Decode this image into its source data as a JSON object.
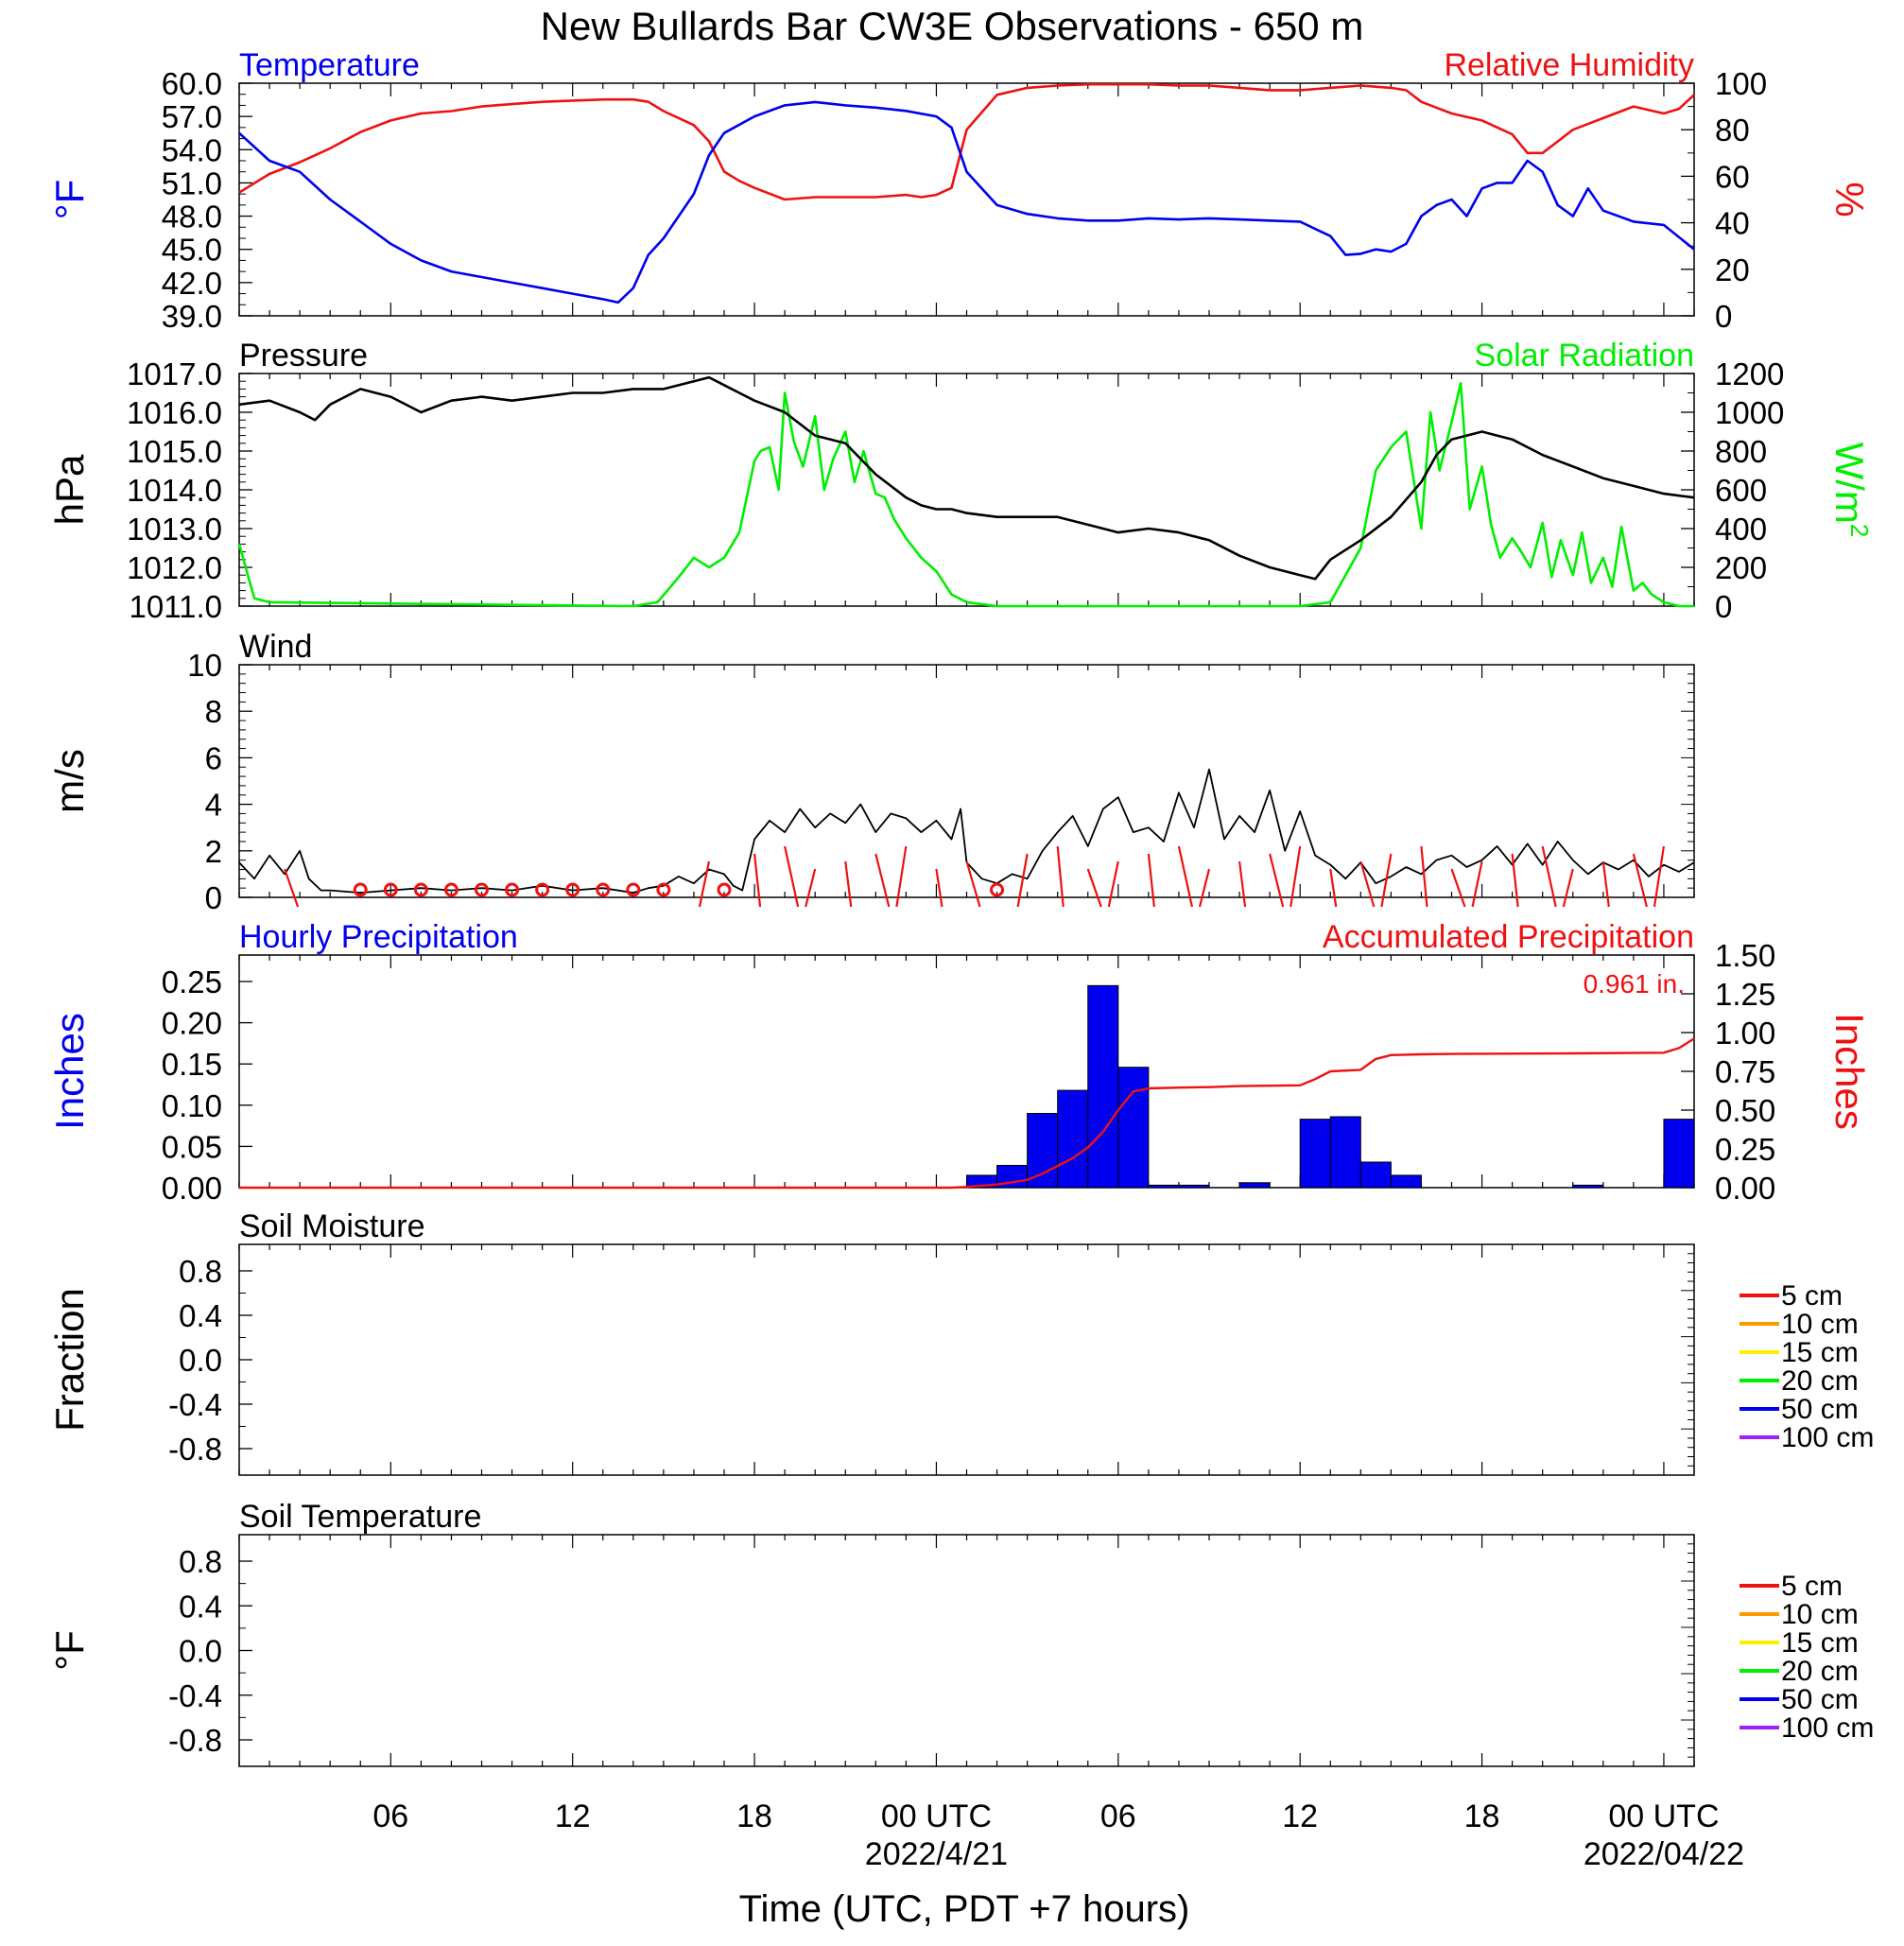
{
  "title": "New Bullards Bar CW3E Observations - 650 m",
  "xlabel": "Time (UTC, PDT +7 hours)",
  "colors": {
    "blue": "#0000ee",
    "red": "#ee1111",
    "green": "#00ee00",
    "black": "#000000",
    "orange": "#ff9900",
    "yellow": "#ffee00",
    "purple": "#a020f0"
  },
  "x_axis": {
    "range_hours": [
      0,
      48
    ],
    "ticks": [
      {
        "h": 5,
        "label": "06",
        "sub": ""
      },
      {
        "h": 11,
        "label": "12",
        "sub": ""
      },
      {
        "h": 17,
        "label": "18",
        "sub": ""
      },
      {
        "h": 23,
        "label": "00 UTC",
        "sub": "2022/4/21"
      },
      {
        "h": 29,
        "label": "06",
        "sub": ""
      },
      {
        "h": 35,
        "label": "12",
        "sub": ""
      },
      {
        "h": 41,
        "label": "18",
        "sub": ""
      },
      {
        "h": 47,
        "label": "00 UTC",
        "sub": "2022/04/22"
      }
    ]
  },
  "panels": {
    "temp_rh": {
      "left_title": "Temperature",
      "right_title": "Relative Humidity",
      "left_unit": "°F",
      "right_unit": "%",
      "left_ticks": [
        "60.0",
        "57.0",
        "54.0",
        "51.0",
        "48.0",
        "45.0",
        "42.0",
        "39.0"
      ],
      "right_ticks": [
        "100",
        "80",
        "60",
        "40",
        "20",
        "0"
      ]
    },
    "pressure_solar": {
      "left_title": "Pressure",
      "right_title": "Solar Radiation",
      "left_unit": "hPa",
      "right_unit_base": "W/m",
      "right_unit_sup": "2",
      "left_ticks": [
        "1017.0",
        "1016.0",
        "1015.0",
        "1014.0",
        "1013.0",
        "1012.0",
        "1011.0"
      ],
      "right_ticks": [
        "1200",
        "1000",
        "800",
        "600",
        "400",
        "200",
        "0"
      ]
    },
    "wind": {
      "left_title": "Wind",
      "left_unit": "m/s",
      "left_ticks": [
        "10",
        "8",
        "6",
        "4",
        "2",
        "0"
      ]
    },
    "precip": {
      "left_title": "Hourly Precipitation",
      "right_title": "Accumulated Precipitation",
      "left_unit": "Inches",
      "right_unit": "Inches",
      "total_label": "0.961 in.",
      "left_ticks": [
        "0.25",
        "0.20",
        "0.15",
        "0.10",
        "0.05",
        "0.00"
      ],
      "right_ticks": [
        "1.50",
        "1.25",
        "1.00",
        "0.75",
        "0.50",
        "0.25",
        "0.00"
      ]
    },
    "soil_moisture": {
      "left_title": "Soil Moisture",
      "left_unit": "Fraction",
      "left_ticks": [
        "0.8",
        "0.4",
        "0.0",
        "-0.4",
        "-0.8"
      ],
      "legend": [
        {
          "label": "5 cm",
          "color": "#ee1111"
        },
        {
          "label": "10 cm",
          "color": "#ff9900"
        },
        {
          "label": "15 cm",
          "color": "#ffee00"
        },
        {
          "label": "20 cm",
          "color": "#00ee00"
        },
        {
          "label": "50 cm",
          "color": "#0000ee"
        },
        {
          "label": "100 cm",
          "color": "#a020f0"
        }
      ]
    },
    "soil_temp": {
      "left_title": "Soil Temperature",
      "left_unit": "°F",
      "left_ticks": [
        "0.8",
        "0.4",
        "0.0",
        "-0.4",
        "-0.8"
      ],
      "legend": [
        {
          "label": "5 cm",
          "color": "#ee1111"
        },
        {
          "label": "10 cm",
          "color": "#ff9900"
        },
        {
          "label": "15 cm",
          "color": "#ffee00"
        },
        {
          "label": "20 cm",
          "color": "#00ee00"
        },
        {
          "label": "50 cm",
          "color": "#0000ee"
        },
        {
          "label": "100 cm",
          "color": "#a020f0"
        }
      ]
    }
  },
  "chart_data": [
    {
      "type": "line",
      "title": "Temperature",
      "ylabel": "°F",
      "ylim": [
        39,
        60
      ],
      "series": [
        {
          "name": "Temperature",
          "x": [
            0,
            1,
            1.5,
            2,
            3,
            4,
            5,
            6,
            7,
            8,
            9,
            10,
            11,
            12,
            12.5,
            13,
            13.5,
            14,
            15,
            15.5,
            16,
            17,
            18,
            19,
            20,
            21,
            22,
            23,
            23.5,
            24,
            25,
            26,
            27,
            28,
            29,
            30,
            31,
            32,
            33,
            34,
            35,
            36,
            36.5,
            37,
            37.5,
            38,
            38.5,
            39,
            39.5,
            40,
            40.5,
            41,
            41.5,
            42,
            42.5,
            43,
            43.5,
            44,
            44.5,
            45,
            46,
            47,
            48
          ],
          "y": [
            55.5,
            53.0,
            52.5,
            52.0,
            49.5,
            47.5,
            45.5,
            44.0,
            43.0,
            42.5,
            42.0,
            41.5,
            41.0,
            40.5,
            40.2,
            41.5,
            44.5,
            46.0,
            50.0,
            53.5,
            55.5,
            57.0,
            58.0,
            58.3,
            58.0,
            57.8,
            57.5,
            57.0,
            56.0,
            52.0,
            49.0,
            48.2,
            47.8,
            47.6,
            47.6,
            47.8,
            47.7,
            47.8,
            47.7,
            47.6,
            47.5,
            46.2,
            44.5,
            44.6,
            45.0,
            44.8,
            45.5,
            48.0,
            49.0,
            49.5,
            48.0,
            50.5,
            51.0,
            51.0,
            53.0,
            52.0,
            49.0,
            48.0,
            50.5,
            48.5,
            47.5,
            47.2,
            45.0
          ]
        }
      ]
    },
    {
      "type": "line",
      "title": "Relative Humidity",
      "ylabel": "%",
      "ylim": [
        0,
        100
      ],
      "series": [
        {
          "name": "Relative Humidity",
          "x": [
            0,
            1,
            2,
            3,
            4,
            5,
            6,
            7,
            8,
            9,
            10,
            11,
            12,
            13,
            13.5,
            14,
            15,
            15.5,
            16,
            16.5,
            17,
            18,
            19,
            20,
            21,
            22,
            22.5,
            23,
            23.5,
            24,
            25,
            26,
            27,
            28,
            29,
            30,
            31,
            32,
            33,
            34,
            35,
            36,
            37,
            38,
            38.5,
            39,
            40,
            41,
            42,
            42.5,
            43,
            44,
            45,
            46,
            47,
            47.5,
            48
          ],
          "y": [
            53,
            61,
            66,
            72,
            79,
            84,
            87,
            88,
            90,
            91,
            92,
            92.5,
            93,
            93,
            92,
            88,
            82,
            75,
            62,
            58,
            55,
            50,
            51,
            51,
            51,
            52,
            51,
            52,
            55,
            80,
            95,
            98,
            99,
            99.5,
            99.5,
            99.5,
            99,
            99,
            98,
            97,
            97,
            98,
            99,
            98,
            97,
            92,
            87,
            84,
            78,
            70,
            70,
            80,
            85,
            90,
            87,
            89,
            95
          ]
        }
      ]
    },
    {
      "type": "line",
      "title": "Pressure",
      "ylabel": "hPa",
      "ylim": [
        1011,
        1017
      ],
      "series": [
        {
          "name": "Pressure",
          "x": [
            0,
            1,
            2,
            2.5,
            3,
            4,
            5,
            6,
            7,
            8,
            9,
            10,
            11,
            12,
            13,
            14,
            15,
            15.5,
            16,
            16.5,
            17,
            18,
            19,
            20,
            21,
            22,
            22.5,
            23,
            23.5,
            24,
            25,
            26,
            27,
            28,
            29,
            30,
            31,
            32,
            33,
            34,
            35,
            35.5,
            36,
            37,
            38,
            39,
            39.5,
            40,
            41,
            42,
            43,
            44,
            45,
            46,
            47,
            48
          ],
          "y": [
            1016.2,
            1016.3,
            1016.0,
            1015.8,
            1016.2,
            1016.6,
            1016.4,
            1016.0,
            1016.3,
            1016.4,
            1016.3,
            1016.4,
            1016.5,
            1016.5,
            1016.6,
            1016.6,
            1016.8,
            1016.9,
            1016.7,
            1016.5,
            1016.3,
            1016.0,
            1015.4,
            1015.2,
            1014.4,
            1013.8,
            1013.6,
            1013.5,
            1013.5,
            1013.4,
            1013.3,
            1013.3,
            1013.3,
            1013.1,
            1012.9,
            1013.0,
            1012.9,
            1012.7,
            1012.3,
            1012.0,
            1011.8,
            1011.7,
            1012.2,
            1012.7,
            1013.3,
            1014.2,
            1014.9,
            1015.3,
            1015.5,
            1015.3,
            1014.9,
            1014.6,
            1014.3,
            1014.1,
            1013.9,
            1013.8
          ]
        }
      ]
    },
    {
      "type": "line",
      "title": "Solar Radiation",
      "ylabel": "W/m2",
      "ylim": [
        0,
        1200
      ],
      "series": [
        {
          "name": "Solar Radiation",
          "x": [
            0,
            0.5,
            1,
            13,
            13.8,
            14.5,
            15,
            15.5,
            16,
            16.5,
            17,
            17.2,
            17.5,
            17.8,
            18,
            18.3,
            18.6,
            19,
            19.3,
            19.6,
            20,
            20.3,
            20.6,
            21,
            21.3,
            21.6,
            22,
            22.5,
            23,
            23.5,
            24,
            25,
            26,
            35,
            36,
            37,
            37.5,
            38,
            38.5,
            39,
            39.3,
            39.6,
            40,
            40.3,
            40.6,
            41,
            41.3,
            41.6,
            42,
            42.3,
            42.6,
            43,
            43.3,
            43.6,
            44,
            44.3,
            44.6,
            45,
            45.3,
            45.6,
            46,
            46.3,
            46.6,
            47,
            47.5,
            48
          ],
          "y": [
            320,
            40,
            20,
            0,
            20,
            150,
            250,
            200,
            250,
            380,
            750,
            800,
            820,
            600,
            1100,
            850,
            720,
            980,
            600,
            760,
            900,
            640,
            800,
            580,
            560,
            450,
            350,
            250,
            180,
            60,
            20,
            0,
            0,
            0,
            20,
            300,
            700,
            820,
            900,
            400,
            1000,
            700,
            950,
            1150,
            500,
            720,
            420,
            250,
            350,
            280,
            200,
            430,
            150,
            340,
            160,
            380,
            120,
            250,
            100,
            410,
            80,
            120,
            60,
            20,
            0,
            0
          ]
        }
      ]
    },
    {
      "type": "line",
      "title": "Wind",
      "ylabel": "m/s",
      "ylim": [
        0,
        10
      ],
      "series": [
        {
          "name": "Wind",
          "x": [
            0,
            0.5,
            1,
            1.5,
            2,
            2.3,
            2.7,
            3,
            4,
            5,
            6,
            7,
            8,
            9,
            10,
            11,
            12,
            13,
            13.5,
            14,
            14.5,
            15,
            15.5,
            16,
            16.3,
            16.6,
            17,
            17.5,
            18,
            18.5,
            19,
            19.5,
            20,
            20.5,
            21,
            21.5,
            22,
            22.5,
            23,
            23.5,
            23.8,
            24,
            24.5,
            25,
            25.5,
            26,
            26.5,
            27,
            27.5,
            28,
            28.5,
            29,
            29.5,
            30,
            30.5,
            31,
            31.5,
            32,
            32.5,
            33,
            33.5,
            34,
            34.5,
            35,
            35.5,
            36,
            36.5,
            37,
            37.5,
            38,
            38.5,
            39,
            39.5,
            40,
            40.5,
            41,
            41.5,
            42,
            42.5,
            43,
            43.5,
            44,
            44.5,
            45,
            45.5,
            46,
            46.5,
            47,
            47.5,
            48
          ],
          "y": [
            1.5,
            0.8,
            1.8,
            1.0,
            2.0,
            0.8,
            0.3,
            0.3,
            0.2,
            0.3,
            0.4,
            0.3,
            0.4,
            0.3,
            0.5,
            0.3,
            0.4,
            0.2,
            0.4,
            0.5,
            0.9,
            0.6,
            1.2,
            1.0,
            0.5,
            0.3,
            2.5,
            3.3,
            2.8,
            3.8,
            3.0,
            3.6,
            3.2,
            4.0,
            2.8,
            3.6,
            3.4,
            2.8,
            3.3,
            2.5,
            3.8,
            1.5,
            0.8,
            0.6,
            1.0,
            0.8,
            2.0,
            2.8,
            3.5,
            2.2,
            3.8,
            4.3,
            2.8,
            3.0,
            2.4,
            4.5,
            3.0,
            5.5,
            2.5,
            3.5,
            2.8,
            4.6,
            2.0,
            3.7,
            1.8,
            1.4,
            0.8,
            1.5,
            0.6,
            0.9,
            1.3,
            1.0,
            1.6,
            1.8,
            1.3,
            1.6,
            2.2,
            1.4,
            2.3,
            1.4,
            2.4,
            1.6,
            1.0,
            1.5,
            1.2,
            1.6,
            0.9,
            1.4,
            1.1,
            1.5
          ]
        }
      ]
    },
    {
      "type": "bar",
      "title": "Hourly Precipitation",
      "ylabel": "Inches",
      "ylim": [
        0,
        0.28
      ],
      "categories": [
        24,
        25,
        26,
        27,
        28,
        29,
        30,
        31,
        32,
        33,
        34,
        35,
        36,
        37,
        38,
        39,
        44,
        47
      ],
      "values": [
        0.015,
        0.027,
        0.09,
        0.118,
        0.245,
        0.146,
        0.003,
        0.003,
        0.0,
        0.006,
        0.0,
        0.083,
        0.086,
        0.031,
        0.015,
        0.0,
        0.003,
        0.083
      ]
    },
    {
      "type": "line",
      "title": "Accumulated Precipitation",
      "ylabel": "Inches",
      "ylim": [
        0,
        1.5
      ],
      "series": [
        {
          "name": "Accumulated Precipitation",
          "x": [
            0,
            23.5,
            24,
            25,
            26,
            26.5,
            27,
            27.5,
            28,
            28.5,
            29,
            29.5,
            30,
            31,
            32,
            33,
            35,
            35.5,
            36,
            37,
            37.5,
            38,
            39,
            40,
            44,
            47,
            47.5,
            48
          ],
          "y": [
            0,
            0,
            0.005,
            0.02,
            0.05,
            0.09,
            0.14,
            0.19,
            0.26,
            0.36,
            0.5,
            0.62,
            0.64,
            0.645,
            0.648,
            0.655,
            0.66,
            0.7,
            0.75,
            0.76,
            0.83,
            0.855,
            0.86,
            0.862,
            0.866,
            0.87,
            0.9,
            0.961
          ]
        }
      ]
    }
  ]
}
